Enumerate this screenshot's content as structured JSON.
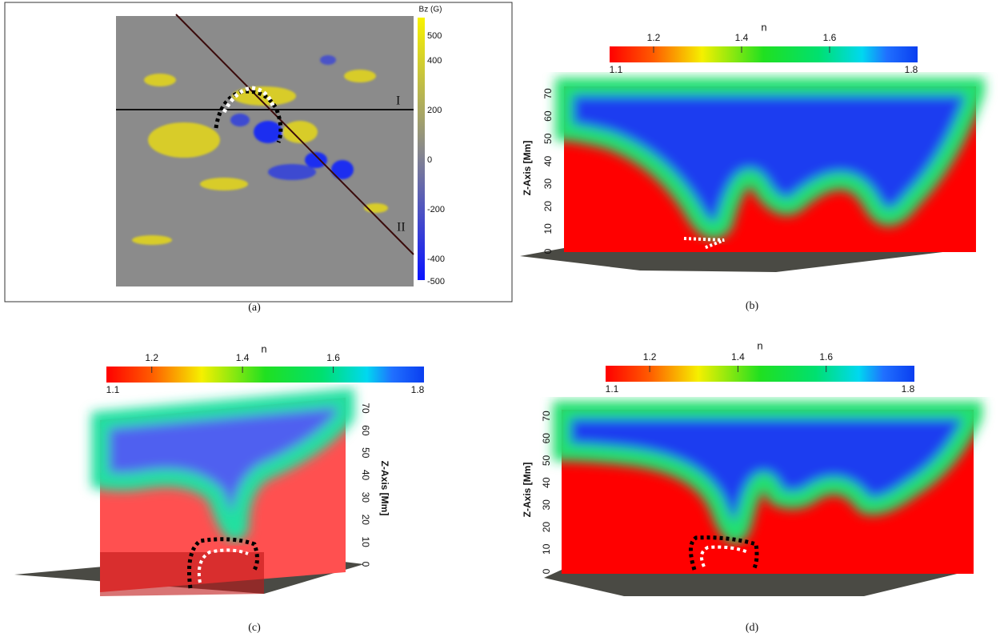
{
  "panels": [
    {
      "label": "(a)",
      "colorbar": {
        "title": "Bz (G)",
        "ticks": [
          500,
          400,
          200,
          0,
          -200,
          -400,
          -500
        ]
      },
      "line_labels": [
        "I",
        "II"
      ]
    },
    {
      "label": "(b)",
      "colorbar": {
        "title": "n",
        "ticks_top": [
          1.2,
          1.4,
          1.6
        ],
        "ticks_bottom": [
          1.1,
          1.8
        ]
      },
      "axis": {
        "title": "Z-Axis [Mm]",
        "ticks": [
          70,
          60,
          50,
          40,
          30,
          20,
          10,
          0
        ]
      }
    },
    {
      "label": "(c)",
      "colorbar": {
        "title": "n",
        "ticks_top": [
          1.2,
          1.4,
          1.6
        ],
        "ticks_bottom": [
          1.1,
          1.8
        ]
      },
      "axis": {
        "title": "Z-Axis [Mm]",
        "ticks": [
          70,
          60,
          50,
          40,
          30,
          20,
          10,
          0
        ]
      }
    },
    {
      "label": "(d)",
      "colorbar": {
        "title": "n",
        "ticks_top": [
          1.2,
          1.4,
          1.6
        ],
        "ticks_bottom": [
          1.1,
          1.8
        ]
      },
      "axis": {
        "title": "Z-Axis [Mm]",
        "ticks": [
          70,
          60,
          50,
          40,
          30,
          20,
          10,
          0
        ]
      }
    }
  ]
}
